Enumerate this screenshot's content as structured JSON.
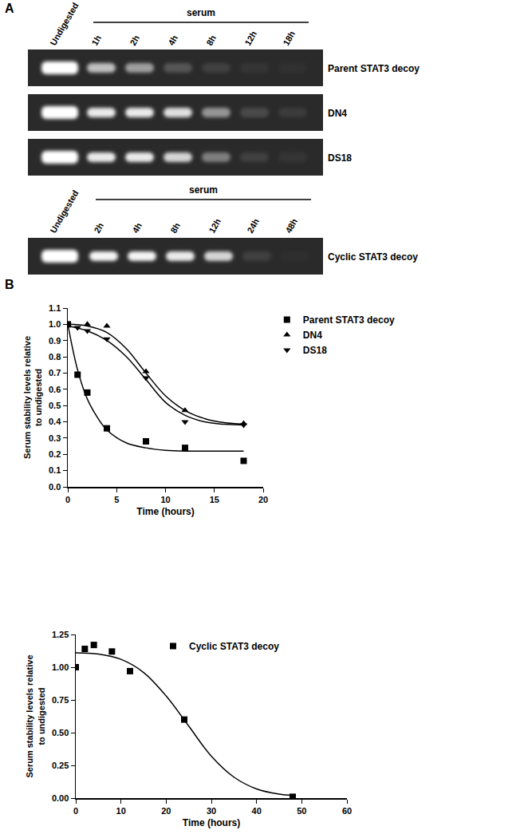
{
  "panel_a": {
    "label": "A",
    "gel_sets": [
      {
        "header": "serum",
        "lanes": [
          "Undigested",
          "1h",
          "2h",
          "4h",
          "8h",
          "12h",
          "18h"
        ],
        "gels": [
          {
            "name": "Parent STAT3 decoy",
            "bands": [
              1.0,
              0.7,
              0.55,
              0.2,
              0.1,
              0.05,
              0.03
            ]
          },
          {
            "name": "DN4",
            "bands": [
              1.0,
              0.9,
              0.9,
              0.85,
              0.5,
              0.15,
              0.08
            ]
          },
          {
            "name": "DS18",
            "bands": [
              1.0,
              0.9,
              0.9,
              0.8,
              0.4,
              0.1,
              0.05
            ]
          }
        ]
      },
      {
        "header": "serum",
        "lanes": [
          "Undigested",
          "2h",
          "4h",
          "8h",
          "12h",
          "24h",
          "48h"
        ],
        "gels": [
          {
            "name": "Cyclic STAT3 decoy",
            "bands": [
              1.0,
              0.95,
              0.95,
              0.9,
              0.8,
              0.1,
              0.02
            ]
          }
        ]
      }
    ]
  },
  "panel_b_label": "B",
  "chart_data": [
    {
      "type": "scatter",
      "x_label": "Time (hours)",
      "y_label": "Serum stability levels relative\nto undigested",
      "xlim": [
        0,
        20
      ],
      "xticks": [
        0,
        5,
        10,
        15,
        20
      ],
      "ylim": [
        0,
        1.1
      ],
      "yticks": [
        {
          "value": 0,
          "label": "0.0"
        },
        0.1,
        0.2,
        0.3,
        0.4,
        0.5,
        0.6,
        0.7,
        0.8,
        0.9,
        {
          "value": 1,
          "label": "1.0"
        },
        1.1
      ],
      "grid": false,
      "legend": "right",
      "series": [
        {
          "name": "Parent STAT3 decoy",
          "color": "#000000",
          "marker": "square",
          "x": [
            0,
            1,
            2,
            4,
            8,
            12,
            18
          ],
          "values": [
            1.0,
            0.69,
            0.58,
            0.36,
            0.28,
            0.24,
            0.16
          ],
          "fit": {
            "x": [
              0,
              1,
              2,
              3,
              4,
              6,
              8,
              10,
              12,
              15,
              18
            ],
            "values": [
              1.0,
              0.72,
              0.54,
              0.43,
              0.35,
              0.27,
              0.24,
              0.225,
              0.22,
              0.22,
              0.22
            ]
          }
        },
        {
          "name": "DN4",
          "color": "#000000",
          "marker": "triangle-up",
          "x": [
            0,
            2,
            4,
            8,
            12,
            18
          ],
          "values": [
            1.0,
            1.0,
            0.99,
            0.71,
            0.47,
            0.39
          ],
          "fit": {
            "x": [
              0,
              2,
              4,
              6,
              8,
              10,
              12,
              14,
              16,
              18
            ],
            "values": [
              1.0,
              0.99,
              0.95,
              0.85,
              0.7,
              0.56,
              0.47,
              0.42,
              0.395,
              0.385
            ]
          }
        },
        {
          "name": "DS18",
          "color": "#000000",
          "marker": "triangle-down",
          "x": [
            0,
            1,
            2,
            4,
            8,
            12,
            18
          ],
          "values": [
            1.0,
            0.98,
            0.96,
            0.91,
            0.67,
            0.4,
            0.38
          ],
          "fit": {
            "x": [
              0,
              2,
              4,
              6,
              8,
              10,
              12,
              14,
              16,
              18
            ],
            "values": [
              0.99,
              0.96,
              0.9,
              0.8,
              0.66,
              0.52,
              0.44,
              0.4,
              0.385,
              0.38
            ]
          }
        }
      ]
    },
    {
      "type": "scatter",
      "x_label": "Time (hours)",
      "y_label": "Serum stability levels relative\nto undigested",
      "xlim": [
        0,
        60
      ],
      "xticks": [
        0,
        10,
        20,
        30,
        40,
        50,
        60
      ],
      "ylim": [
        0,
        1.25
      ],
      "yticks": [
        {
          "value": 0,
          "label": "0.00"
        },
        0.25,
        {
          "value": 0.5,
          "label": "0.50"
        },
        0.75,
        {
          "value": 1,
          "label": "1.00"
        },
        1.25
      ],
      "grid": false,
      "legend": "top",
      "series": [
        {
          "name": "Cyclic STAT3 decoy",
          "color": "#000000",
          "marker": "square",
          "x": [
            0,
            2,
            4,
            8,
            12,
            24,
            48
          ],
          "values": [
            1.0,
            1.14,
            1.17,
            1.12,
            0.97,
            0.6,
            0.01
          ],
          "fit": {
            "x": [
              0,
              5,
              10,
              15,
              20,
              25,
              30,
              35,
              40,
              45,
              48
            ],
            "values": [
              1.11,
              1.1,
              1.06,
              0.96,
              0.78,
              0.55,
              0.32,
              0.16,
              0.07,
              0.03,
              0.02
            ]
          }
        }
      ]
    }
  ]
}
